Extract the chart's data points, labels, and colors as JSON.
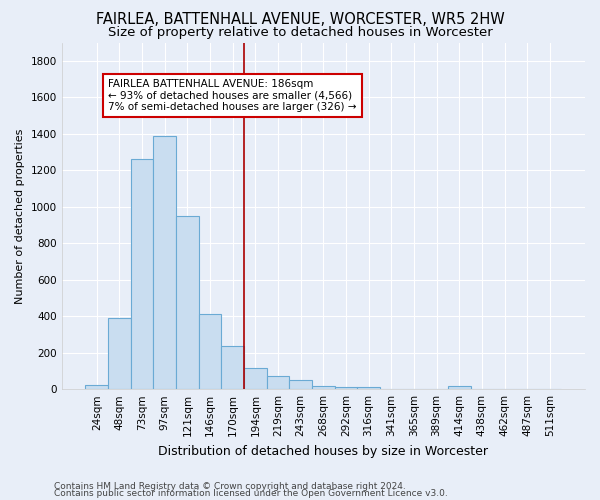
{
  "title": "FAIRLEA, BATTENHALL AVENUE, WORCESTER, WR5 2HW",
  "subtitle": "Size of property relative to detached houses in Worcester",
  "xlabel": "Distribution of detached houses by size in Worcester",
  "ylabel": "Number of detached properties",
  "categories": [
    "24sqm",
    "48sqm",
    "73sqm",
    "97sqm",
    "121sqm",
    "146sqm",
    "170sqm",
    "194sqm",
    "219sqm",
    "243sqm",
    "268sqm",
    "292sqm",
    "316sqm",
    "341sqm",
    "365sqm",
    "389sqm",
    "414sqm",
    "438sqm",
    "462sqm",
    "487sqm",
    "511sqm"
  ],
  "values": [
    25,
    390,
    1260,
    1390,
    950,
    410,
    235,
    115,
    70,
    50,
    20,
    10,
    10,
    0,
    0,
    0,
    20,
    0,
    0,
    0,
    0
  ],
  "bar_color": "#c9ddf0",
  "bar_edge_color": "#6aaad4",
  "vline_x_index": 7,
  "vline_color": "#aa0000",
  "annotation_title": "FAIRLEA BATTENHALL AVENUE: 186sqm",
  "annotation_line1": "← 93% of detached houses are smaller (4,566)",
  "annotation_line2": "7% of semi-detached houses are larger (326) →",
  "annotation_box_color": "#ffffff",
  "annotation_box_edge": "#cc0000",
  "background_color": "#e8eef8",
  "grid_color": "#d0d8e8",
  "footer1": "Contains HM Land Registry data © Crown copyright and database right 2024.",
  "footer2": "Contains public sector information licensed under the Open Government Licence v3.0.",
  "ylim": [
    0,
    1900
  ],
  "yticks": [
    0,
    200,
    400,
    600,
    800,
    1000,
    1200,
    1400,
    1600,
    1800
  ],
  "title_fontsize": 10.5,
  "subtitle_fontsize": 9.5,
  "xlabel_fontsize": 9,
  "ylabel_fontsize": 8,
  "tick_fontsize": 7.5,
  "footer_fontsize": 6.5
}
